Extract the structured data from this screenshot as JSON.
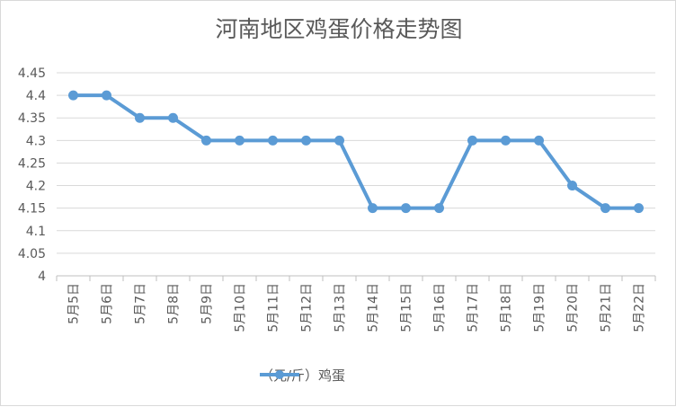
{
  "chart_data": {
    "type": "line",
    "title": "河南地区鸡蛋价格走势图",
    "categories": [
      "5月5日",
      "5月6日",
      "5月7日",
      "5月8日",
      "5月9日",
      "5月10日",
      "5月11日",
      "5月12日",
      "5月13日",
      "5月14日",
      "5月15日",
      "5月16日",
      "5月17日",
      "5月18日",
      "5月19日",
      "5月20日",
      "5月21日",
      "5月22日"
    ],
    "series": [
      {
        "name": "（元/斤）鸡蛋",
        "values": [
          4.4,
          4.4,
          4.35,
          4.35,
          4.3,
          4.3,
          4.3,
          4.3,
          4.3,
          4.15,
          4.15,
          4.15,
          4.3,
          4.3,
          4.3,
          4.2,
          4.15,
          4.15
        ],
        "color": "#5b9bd5"
      }
    ],
    "ylim": [
      4,
      4.45
    ],
    "yticks": [
      "4",
      "4.05",
      "4.1",
      "4.15",
      "4.2",
      "4.25",
      "4.3",
      "4.35",
      "4.4",
      "4.45"
    ],
    "xlabel": "",
    "ylabel": "",
    "grid": true,
    "legend": "bottom"
  }
}
